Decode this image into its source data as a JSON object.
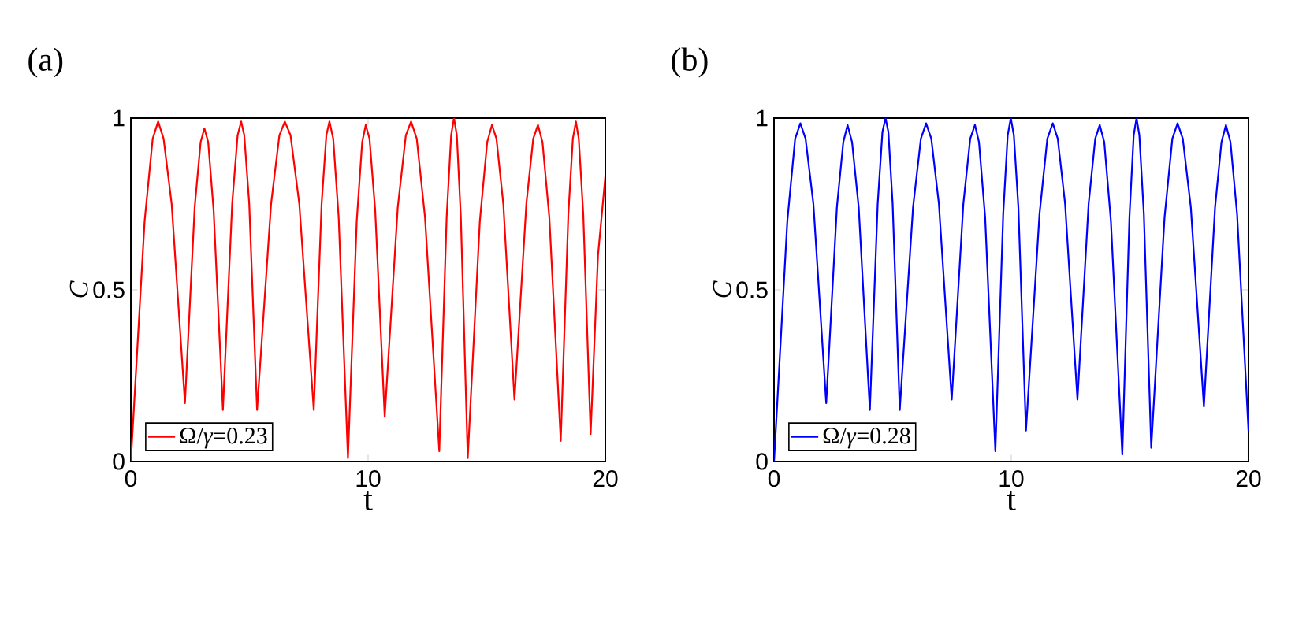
{
  "chart_data": [
    {
      "type": "line",
      "title": "(a)",
      "xlabel": "t",
      "ylabel": "C",
      "xlim": [
        0,
        20
      ],
      "ylim": [
        0,
        1
      ],
      "xticks": [
        0,
        10,
        20
      ],
      "yticks": [
        0,
        0.5,
        1
      ],
      "legend": "bottom left",
      "grid": false,
      "series": [
        {
          "name": "Ω/*γ*=0.23",
          "color": "#ff0000",
          "x": [
            0,
            0.58,
            0.92,
            1.15,
            1.38,
            1.72,
            2.28,
            2.69,
            2.94,
            3.1,
            3.26,
            3.49,
            3.88,
            4.27,
            4.5,
            4.65,
            4.78,
            4.99,
            5.32,
            5.91,
            6.26,
            6.49,
            6.73,
            7.1,
            7.71,
            8.04,
            8.24,
            8.37,
            8.53,
            8.76,
            9.15,
            9.52,
            9.75,
            9.9,
            10.06,
            10.3,
            10.7,
            11.25,
            11.59,
            11.81,
            12.05,
            12.4,
            13.0,
            13.31,
            13.5,
            13.62,
            13.74,
            13.91,
            14.2,
            14.71,
            15.02,
            15.22,
            15.41,
            15.7,
            16.17,
            16.67,
            16.96,
            17.16,
            17.35,
            17.64,
            18.12,
            18.44,
            18.63,
            18.76,
            18.88,
            19.07,
            19.38,
            19.69,
            20
          ],
          "values": [
            0,
            0.7,
            0.94,
            0.99,
            0.94,
            0.75,
            0.17,
            0.74,
            0.93,
            0.97,
            0.93,
            0.73,
            0.15,
            0.75,
            0.95,
            0.99,
            0.95,
            0.75,
            0.15,
            0.75,
            0.95,
            0.99,
            0.95,
            0.75,
            0.15,
            0.75,
            0.95,
            0.99,
            0.94,
            0.71,
            0.01,
            0.7,
            0.93,
            0.98,
            0.94,
            0.73,
            0.13,
            0.74,
            0.95,
            0.99,
            0.94,
            0.71,
            0.03,
            0.71,
            0.95,
            1.0,
            0.95,
            0.71,
            0.01,
            0.7,
            0.93,
            0.98,
            0.94,
            0.75,
            0.18,
            0.75,
            0.94,
            0.98,
            0.93,
            0.71,
            0.06,
            0.72,
            0.94,
            0.99,
            0.94,
            0.72,
            0.08,
            0.6,
            0.83
          ]
        }
      ]
    },
    {
      "type": "line",
      "title": "(b)",
      "xlabel": "t",
      "ylabel": "C",
      "xlim": [
        0,
        20
      ],
      "ylim": [
        0,
        1
      ],
      "xticks": [
        0,
        10,
        20
      ],
      "yticks": [
        0,
        0.5,
        1
      ],
      "legend": "bottom left",
      "grid": false,
      "series": [
        {
          "name": "Ω/*γ*=0.28",
          "color": "#0000ff",
          "x": [
            0,
            0.56,
            0.89,
            1.11,
            1.33,
            1.66,
            2.2,
            2.65,
            2.92,
            3.1,
            3.29,
            3.57,
            4.04,
            4.37,
            4.57,
            4.7,
            4.82,
            5.0,
            5.3,
            5.86,
            6.19,
            6.41,
            6.63,
            6.95,
            7.49,
            7.98,
            8.27,
            8.47,
            8.64,
            8.9,
            9.33,
            9.66,
            9.85,
            9.98,
            10.11,
            10.3,
            10.62,
            11.19,
            11.52,
            11.75,
            11.96,
            12.27,
            12.79,
            13.26,
            13.54,
            13.73,
            13.92,
            14.2,
            14.68,
            14.98,
            15.16,
            15.28,
            15.4,
            15.59,
            15.9,
            16.46,
            16.79,
            17.01,
            17.23,
            17.57,
            18.12,
            18.59,
            18.86,
            19.05,
            19.24,
            19.52,
            20
          ],
          "values": [
            0,
            0.7,
            0.94,
            0.985,
            0.94,
            0.75,
            0.17,
            0.74,
            0.93,
            0.98,
            0.93,
            0.74,
            0.15,
            0.75,
            0.96,
            1.0,
            0.96,
            0.75,
            0.15,
            0.74,
            0.94,
            0.985,
            0.94,
            0.75,
            0.18,
            0.75,
            0.94,
            0.98,
            0.93,
            0.71,
            0.03,
            0.72,
            0.95,
            1.0,
            0.95,
            0.74,
            0.09,
            0.72,
            0.94,
            0.985,
            0.94,
            0.75,
            0.18,
            0.75,
            0.94,
            0.98,
            0.93,
            0.7,
            0.02,
            0.71,
            0.95,
            1.0,
            0.95,
            0.72,
            0.04,
            0.71,
            0.94,
            0.985,
            0.94,
            0.74,
            0.16,
            0.74,
            0.93,
            0.98,
            0.93,
            0.72,
            0.09
          ]
        }
      ]
    }
  ]
}
